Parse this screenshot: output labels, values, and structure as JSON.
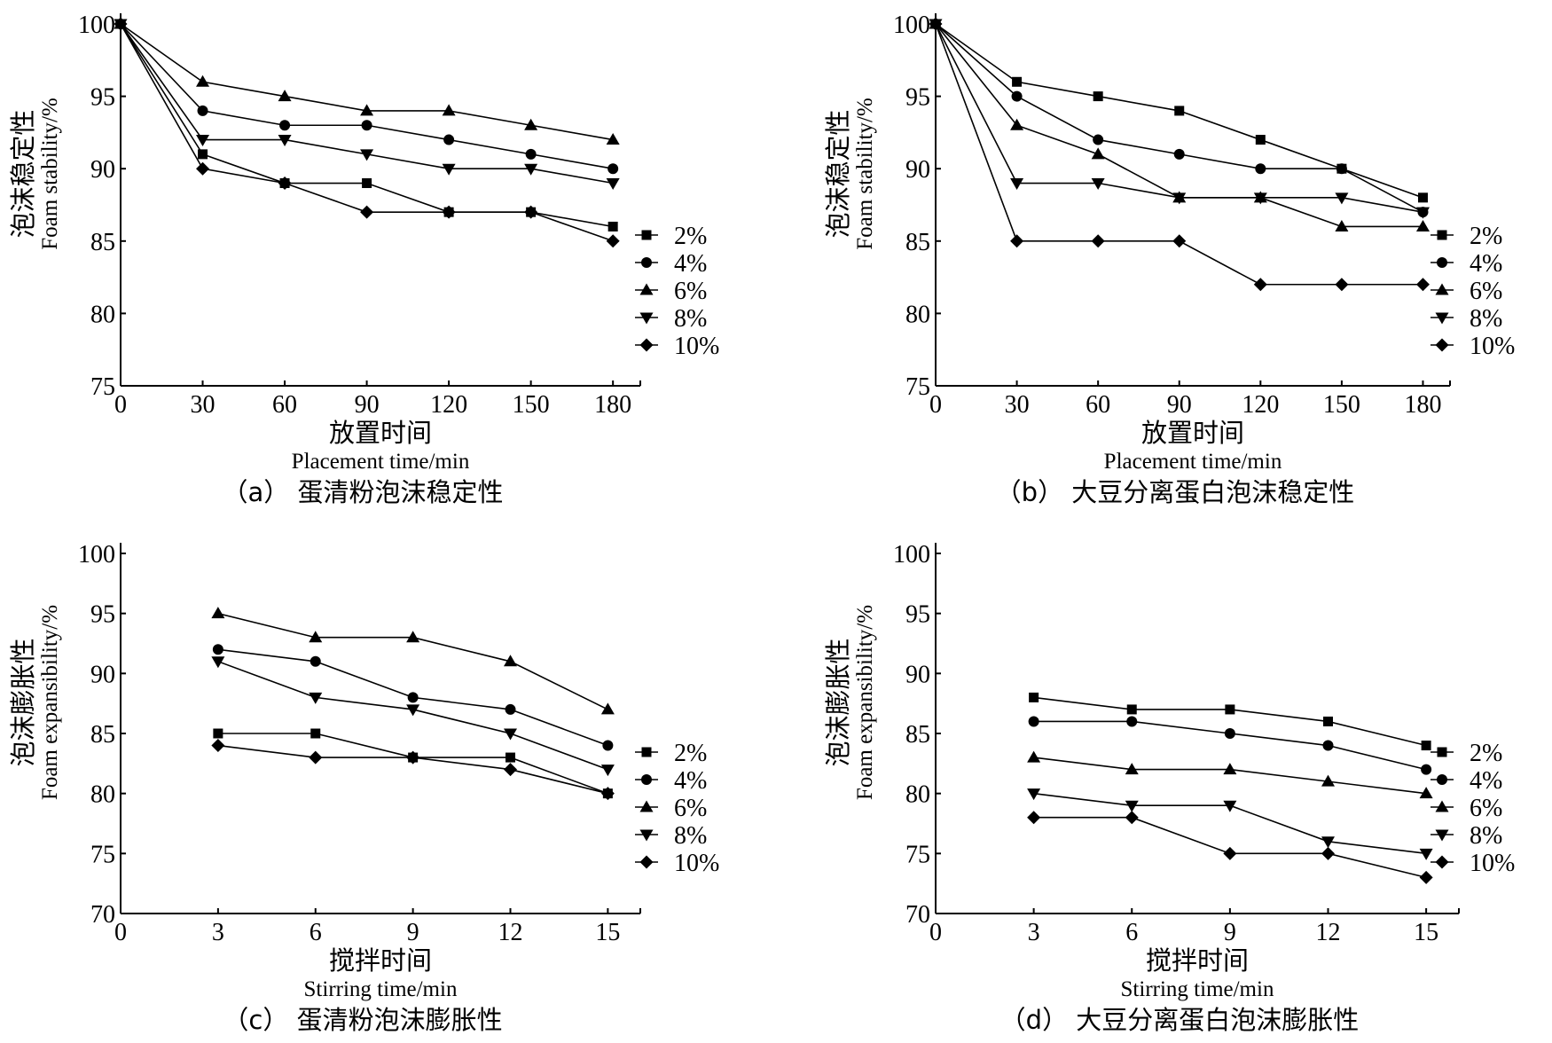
{
  "chart_data": [
    {
      "type": "line",
      "caption": "（a） 蛋清粉泡沫稳定性",
      "xlabel_cn": "放置时间",
      "xlabel_en": "Placement time/min",
      "ylabel_cn": "泡沫稳定性",
      "ylabel_en": "Foam stability/%",
      "xlim": [
        0,
        190
      ],
      "ylim": [
        75,
        100
      ],
      "xticks": [
        0,
        30,
        60,
        90,
        120,
        150,
        180
      ],
      "yticks": [
        75,
        80,
        85,
        90,
        95,
        100
      ],
      "legend_position": "right",
      "series": [
        {
          "name": "2%",
          "marker": "square",
          "x": [
            0,
            30,
            60,
            90,
            120,
            150,
            180
          ],
          "values": [
            100,
            91,
            89,
            89,
            87,
            87,
            86
          ]
        },
        {
          "name": "4%",
          "marker": "circle",
          "x": [
            0,
            30,
            60,
            90,
            120,
            150,
            180
          ],
          "values": [
            100,
            94,
            93,
            93,
            92,
            91,
            90
          ]
        },
        {
          "name": "6%",
          "marker": "triangle-up",
          "x": [
            0,
            30,
            60,
            90,
            120,
            150,
            180
          ],
          "values": [
            100,
            96,
            95,
            94,
            94,
            93,
            92
          ]
        },
        {
          "name": "8%",
          "marker": "triangle-down",
          "x": [
            0,
            30,
            60,
            90,
            120,
            150,
            180
          ],
          "values": [
            100,
            92,
            92,
            91,
            90,
            90,
            89
          ]
        },
        {
          "name": "10%",
          "marker": "diamond",
          "x": [
            0,
            30,
            60,
            90,
            120,
            150,
            180
          ],
          "values": [
            100,
            90,
            89,
            87,
            87,
            87,
            85
          ]
        }
      ]
    },
    {
      "type": "line",
      "caption": "（b） 大豆分离蛋白泡沫稳定性",
      "xlabel_cn": "放置时间",
      "xlabel_en": "Placement time/min",
      "ylabel_cn": "泡沫稳定性",
      "ylabel_en": "Foam stability/%",
      "xlim": [
        0,
        190
      ],
      "ylim": [
        75,
        100
      ],
      "xticks": [
        0,
        30,
        60,
        90,
        120,
        150,
        180
      ],
      "yticks": [
        75,
        80,
        85,
        90,
        95,
        100
      ],
      "legend_position": "right",
      "series": [
        {
          "name": "2%",
          "marker": "square",
          "x": [
            0,
            30,
            60,
            90,
            120,
            150,
            180
          ],
          "values": [
            100,
            96,
            95,
            94,
            92,
            90,
            88
          ]
        },
        {
          "name": "4%",
          "marker": "circle",
          "x": [
            0,
            30,
            60,
            90,
            120,
            150,
            180
          ],
          "values": [
            100,
            95,
            92,
            91,
            90,
            90,
            87
          ]
        },
        {
          "name": "6%",
          "marker": "triangle-up",
          "x": [
            0,
            30,
            60,
            90,
            120,
            150,
            180
          ],
          "values": [
            100,
            93,
            91,
            88,
            88,
            86,
            86
          ]
        },
        {
          "name": "8%",
          "marker": "triangle-down",
          "x": [
            0,
            30,
            60,
            90,
            120,
            150,
            180
          ],
          "values": [
            100,
            89,
            89,
            88,
            88,
            88,
            87
          ]
        },
        {
          "name": "10%",
          "marker": "diamond",
          "x": [
            0,
            30,
            60,
            90,
            120,
            150,
            180
          ],
          "values": [
            100,
            85,
            85,
            85,
            82,
            82,
            82
          ]
        }
      ]
    },
    {
      "type": "line",
      "caption": "（c） 蛋清粉泡沫膨胀性",
      "xlabel_cn": "搅拌时间",
      "xlabel_en": "Stirring time/min",
      "ylabel_cn": "泡沫膨胀性",
      "ylabel_en": "Foam expansibility/%",
      "xlim": [
        0,
        16
      ],
      "ylim": [
        70,
        100
      ],
      "xticks": [
        0,
        3,
        6,
        9,
        12,
        15
      ],
      "yticks": [
        70,
        75,
        80,
        85,
        90,
        95,
        100
      ],
      "legend_position": "right",
      "series": [
        {
          "name": "2%",
          "marker": "square",
          "x": [
            3,
            6,
            9,
            12,
            15
          ],
          "values": [
            85,
            85,
            83,
            83,
            80
          ]
        },
        {
          "name": "4%",
          "marker": "circle",
          "x": [
            3,
            6,
            9,
            12,
            15
          ],
          "values": [
            92,
            91,
            88,
            87,
            84
          ]
        },
        {
          "name": "6%",
          "marker": "triangle-up",
          "x": [
            3,
            6,
            9,
            12,
            15
          ],
          "values": [
            95,
            93,
            93,
            91,
            87
          ]
        },
        {
          "name": "8%",
          "marker": "triangle-down",
          "x": [
            3,
            6,
            9,
            12,
            15
          ],
          "values": [
            91,
            88,
            87,
            85,
            82
          ]
        },
        {
          "name": "10%",
          "marker": "diamond",
          "x": [
            3,
            6,
            9,
            12,
            15
          ],
          "values": [
            84,
            83,
            83,
            82,
            80
          ]
        }
      ]
    },
    {
      "type": "line",
      "caption": "（d） 大豆分离蛋白泡沫膨胀性",
      "xlabel_cn": "搅拌时间",
      "xlabel_en": "Stirring time/min",
      "ylabel_cn": "泡沫膨胀性",
      "ylabel_en": "Foam expansibility/%",
      "xlim": [
        0,
        16
      ],
      "ylim": [
        70,
        100
      ],
      "xticks": [
        0,
        3,
        6,
        9,
        12,
        15
      ],
      "yticks": [
        70,
        75,
        80,
        85,
        90,
        95,
        100
      ],
      "legend_position": "right",
      "series": [
        {
          "name": "2%",
          "marker": "square",
          "x": [
            3,
            6,
            9,
            12,
            15
          ],
          "values": [
            88,
            87,
            87,
            86,
            84
          ]
        },
        {
          "name": "4%",
          "marker": "circle",
          "x": [
            3,
            6,
            9,
            12,
            15
          ],
          "values": [
            86,
            86,
            85,
            84,
            82
          ]
        },
        {
          "name": "6%",
          "marker": "triangle-up",
          "x": [
            3,
            6,
            9,
            12,
            15
          ],
          "values": [
            83,
            82,
            82,
            81,
            80
          ]
        },
        {
          "name": "8%",
          "marker": "triangle-down",
          "x": [
            3,
            6,
            9,
            12,
            15
          ],
          "values": [
            80,
            79,
            79,
            76,
            75
          ]
        },
        {
          "name": "10%",
          "marker": "diamond",
          "x": [
            3,
            6,
            9,
            12,
            15
          ],
          "values": [
            78,
            78,
            75,
            75,
            73
          ]
        }
      ]
    }
  ]
}
